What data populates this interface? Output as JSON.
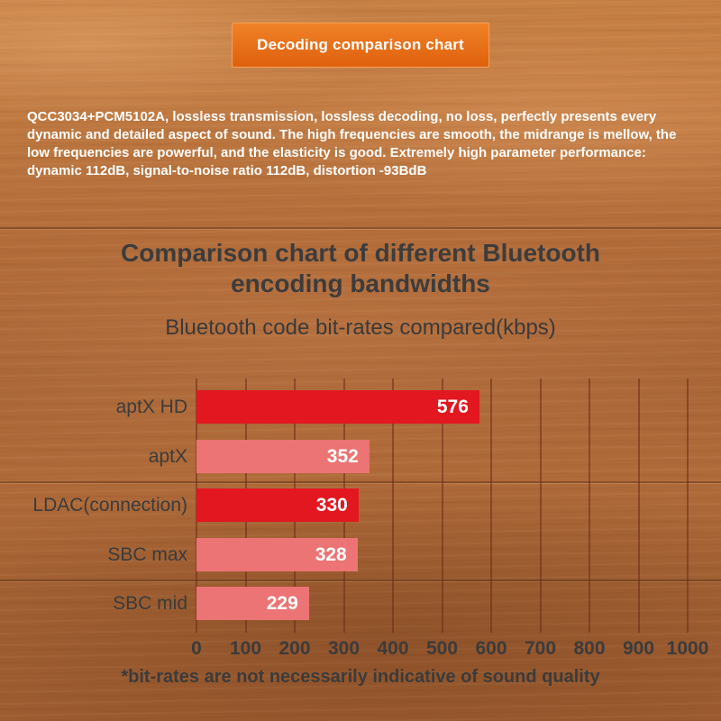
{
  "banner": {
    "label": "Decoding comparison chart"
  },
  "description": {
    "text": "QCC3034+PCM5102A, lossless transmission, lossless decoding, no loss, perfectly presents every dynamic and detailed aspect of sound. The high frequencies are smooth, the midrange is mellow, the low frequencies are powerful, and the elasticity is good. Extremely high parameter performance: dynamic 112dB, signal-to-noise ratio 112dB, distortion -93BdB"
  },
  "heading": {
    "text": "Comparison chart of different Bluetooth encoding bandwidths"
  },
  "chart_data": {
    "type": "bar",
    "orientation": "horizontal",
    "title": "Bluetooth code bit-rates compared(kbps)",
    "categories": [
      "aptX HD",
      "aptX",
      "LDAC(connection)",
      "SBC max",
      "SBC mid"
    ],
    "values": [
      576,
      352,
      330,
      328,
      229
    ],
    "bar_colors": [
      "#e3171f",
      "#ec7474",
      "#e3171f",
      "#ec7474",
      "#ec7474"
    ],
    "value_label_color": "#ffffff",
    "xlim": [
      0,
      1000
    ],
    "x_ticks": [
      0,
      100,
      200,
      300,
      400,
      500,
      600,
      700,
      800,
      900,
      1000
    ],
    "grid": true,
    "legend": "none",
    "footnote": "*bit-rates are not necessarily indicative of sound quality"
  },
  "colors": {
    "accent_orange": "#e0661a",
    "bar_red": "#e3171f",
    "bar_salmon": "#ec7474",
    "text_dark": "#3b3b3b",
    "text_light": "#ffffff",
    "gridline": "#6e2a16"
  }
}
